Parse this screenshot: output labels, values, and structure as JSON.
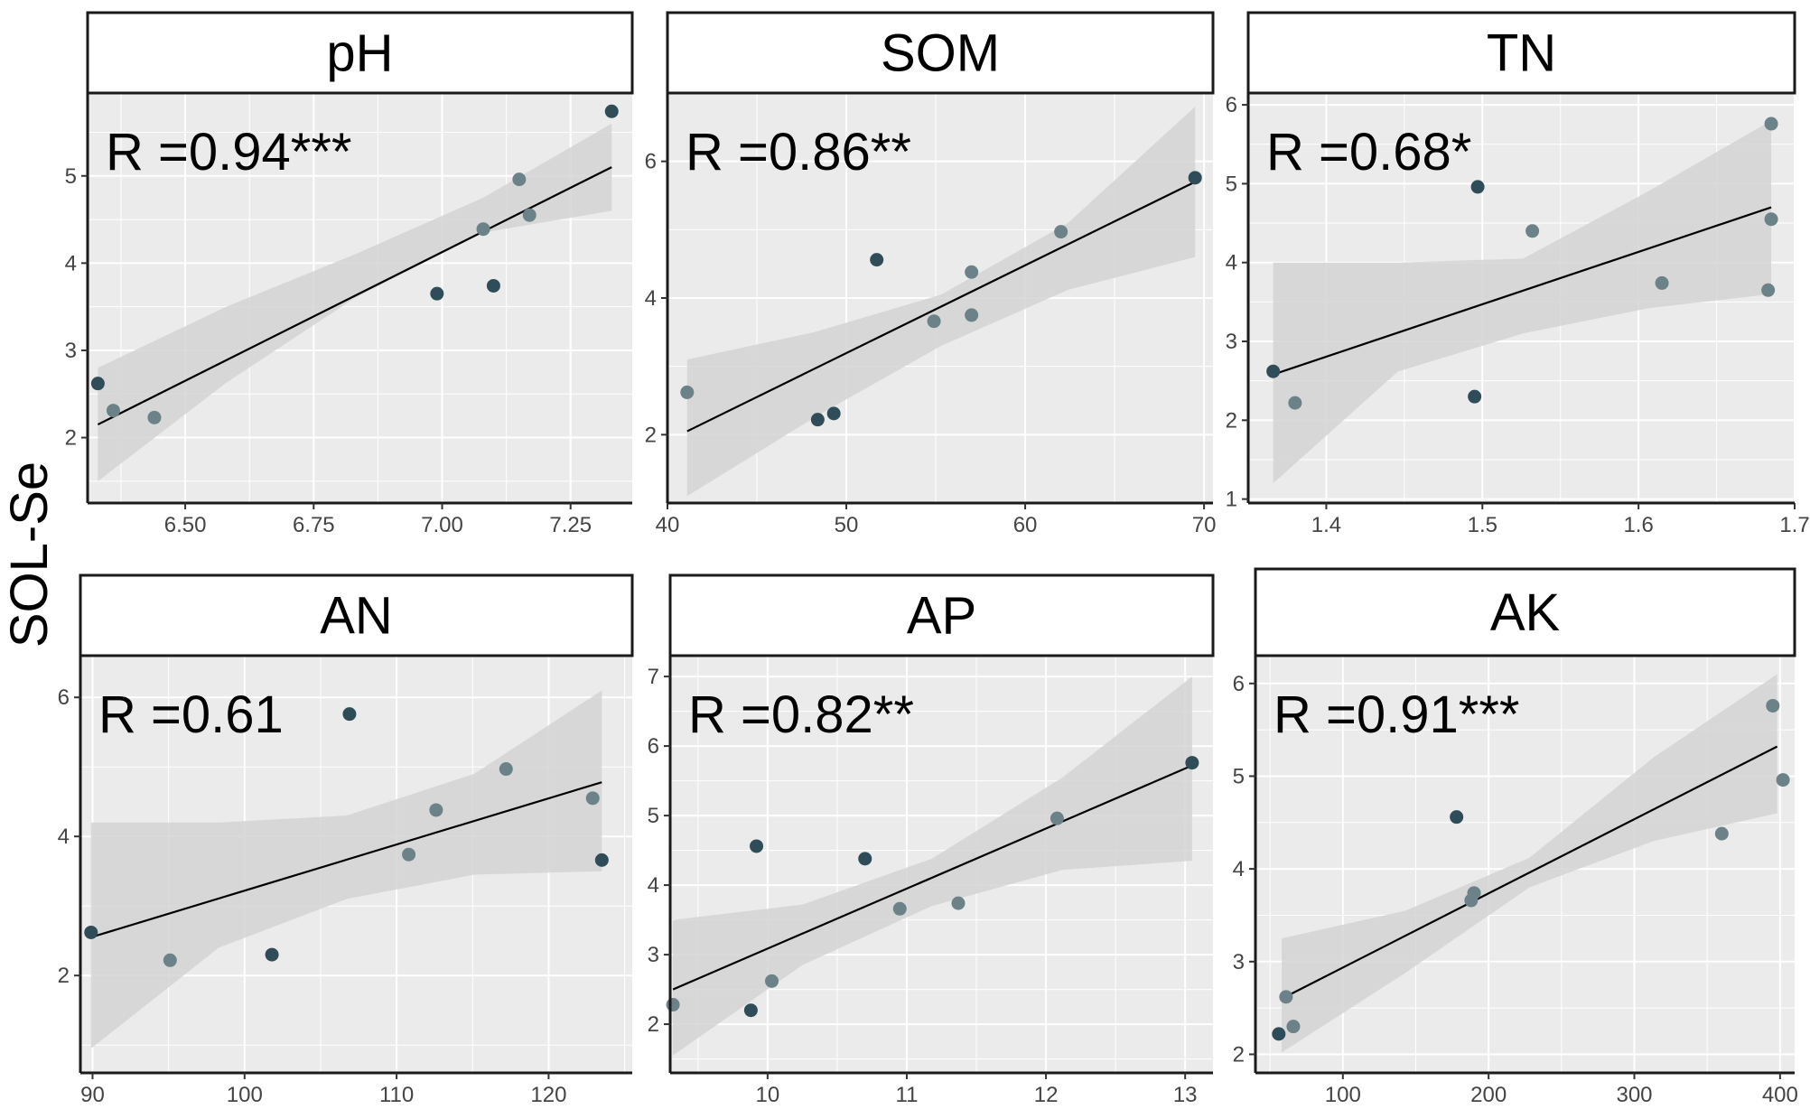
{
  "figure": {
    "y_axis_label": "SOL-Se",
    "colors": {
      "panel_bg": "#ebebeb",
      "grid": "#ffffff",
      "ribbon": "#d4d4d4",
      "line": "#000000",
      "point_dark": "#2f4d58",
      "point_light": "#6b8288",
      "strip_bg": "#ffffff",
      "border": "#1a1a1a"
    }
  },
  "chart_data": [
    {
      "type": "scatter",
      "title": "pH",
      "stat_label": "R  =0.94***",
      "xlabel": "",
      "ylabel": "SOL-Se",
      "xlim": [
        6.31,
        7.37
      ],
      "ylim": [
        1.25,
        5.95
      ],
      "xticks": [
        6.5,
        6.75,
        7.0,
        7.25
      ],
      "xtick_labels": [
        "6.50",
        "6.75",
        "7.00",
        "7.25"
      ],
      "yticks": [
        2,
        3,
        4,
        5
      ],
      "ytick_labels": [
        "2",
        "3",
        "4",
        "5"
      ],
      "points": [
        {
          "x": 6.33,
          "y": 2.62,
          "shade": "dark"
        },
        {
          "x": 6.36,
          "y": 2.31,
          "shade": "light"
        },
        {
          "x": 6.44,
          "y": 2.23,
          "shade": "light"
        },
        {
          "x": 6.99,
          "y": 3.65,
          "shade": "dark"
        },
        {
          "x": 7.08,
          "y": 4.39,
          "shade": "light"
        },
        {
          "x": 7.1,
          "y": 3.74,
          "shade": "dark"
        },
        {
          "x": 7.15,
          "y": 4.96,
          "shade": "light"
        },
        {
          "x": 7.17,
          "y": 4.55,
          "shade": "light"
        },
        {
          "x": 7.33,
          "y": 5.74,
          "shade": "dark"
        }
      ],
      "fit": {
        "x": [
          6.33,
          7.33
        ],
        "y": [
          2.15,
          5.1
        ]
      },
      "ci_band": {
        "x": [
          6.33,
          6.58,
          6.83,
          7.08,
          7.33
        ],
        "lower": [
          1.5,
          2.63,
          3.6,
          4.35,
          4.6
        ],
        "upper": [
          2.8,
          3.5,
          4.1,
          4.75,
          5.6
        ]
      }
    },
    {
      "type": "scatter",
      "title": "SOM",
      "stat_label": "R  =0.86**",
      "xlabel": "",
      "ylabel": "SOL-Se",
      "xlim": [
        40.0,
        70.5
      ],
      "ylim": [
        1.0,
        7.0
      ],
      "xticks": [
        40,
        50,
        60,
        70
      ],
      "xtick_labels": [
        "40",
        "50",
        "60",
        "70"
      ],
      "yticks": [
        2,
        4,
        6
      ],
      "ytick_labels": [
        "2",
        "4",
        "6"
      ],
      "points": [
        {
          "x": 41.1,
          "y": 2.62,
          "shade": "light"
        },
        {
          "x": 48.4,
          "y": 2.22,
          "shade": "dark"
        },
        {
          "x": 49.3,
          "y": 2.31,
          "shade": "dark"
        },
        {
          "x": 51.7,
          "y": 4.56,
          "shade": "dark"
        },
        {
          "x": 54.9,
          "y": 3.66,
          "shade": "light"
        },
        {
          "x": 57.0,
          "y": 4.38,
          "shade": "light"
        },
        {
          "x": 57.0,
          "y": 3.75,
          "shade": "light"
        },
        {
          "x": 62.0,
          "y": 4.97,
          "shade": "light"
        },
        {
          "x": 69.5,
          "y": 5.76,
          "shade": "dark"
        }
      ],
      "fit": {
        "x": [
          41.1,
          69.5
        ],
        "y": [
          2.05,
          5.7
        ]
      },
      "ci_band": {
        "x": [
          41.1,
          48.2,
          55.3,
          62.4,
          69.5
        ],
        "lower": [
          1.1,
          2.25,
          3.3,
          4.12,
          4.6
        ],
        "upper": [
          3.1,
          3.5,
          4.05,
          5.1,
          6.8
        ]
      }
    },
    {
      "type": "scatter",
      "title": "TN",
      "stat_label": "R  =0.68*",
      "xlabel": "",
      "ylabel": "SOL-Se",
      "xlim": [
        1.35,
        1.7
      ],
      "ylim": [
        0.95,
        6.15
      ],
      "xticks": [
        1.4,
        1.5,
        1.6,
        1.7
      ],
      "xtick_labels": [
        "1.4",
        "1.5",
        "1.6",
        "1.7"
      ],
      "yticks": [
        1,
        2,
        3,
        4,
        5,
        6
      ],
      "ytick_labels": [
        "1",
        "2",
        "3",
        "4",
        "5",
        "6"
      ],
      "points": [
        {
          "x": 1.366,
          "y": 2.62,
          "shade": "dark"
        },
        {
          "x": 1.38,
          "y": 2.22,
          "shade": "light"
        },
        {
          "x": 1.495,
          "y": 2.3,
          "shade": "dark"
        },
        {
          "x": 1.497,
          "y": 4.96,
          "shade": "dark"
        },
        {
          "x": 1.532,
          "y": 4.4,
          "shade": "light"
        },
        {
          "x": 1.615,
          "y": 3.74,
          "shade": "light"
        },
        {
          "x": 1.683,
          "y": 3.65,
          "shade": "light"
        },
        {
          "x": 1.685,
          "y": 5.76,
          "shade": "light"
        },
        {
          "x": 1.685,
          "y": 4.55,
          "shade": "light"
        }
      ],
      "fit": {
        "x": [
          1.366,
          1.685
        ],
        "y": [
          2.58,
          4.7
        ]
      },
      "ci_band": {
        "x": [
          1.366,
          1.446,
          1.526,
          1.606,
          1.685
        ],
        "lower": [
          1.2,
          2.62,
          3.1,
          3.42,
          3.6
        ],
        "upper": [
          4.0,
          4.0,
          4.05,
          4.9,
          5.8
        ]
      }
    },
    {
      "type": "scatter",
      "title": "AN",
      "stat_label": "R  =0.61",
      "xlabel": "",
      "ylabel": "SOL-Se",
      "xlim": [
        89.2,
        125.5
      ],
      "ylim": [
        0.6,
        6.6
      ],
      "xticks": [
        90,
        100,
        110,
        120
      ],
      "xtick_labels": [
        "90",
        "100",
        "110",
        "120"
      ],
      "yticks": [
        2,
        4,
        6
      ],
      "ytick_labels": [
        "2",
        "4",
        "6"
      ],
      "points": [
        {
          "x": 89.9,
          "y": 2.62,
          "shade": "dark"
        },
        {
          "x": 95.1,
          "y": 2.22,
          "shade": "light"
        },
        {
          "x": 101.8,
          "y": 2.3,
          "shade": "dark"
        },
        {
          "x": 106.9,
          "y": 5.76,
          "shade": "dark"
        },
        {
          "x": 110.8,
          "y": 3.74,
          "shade": "light"
        },
        {
          "x": 112.6,
          "y": 4.38,
          "shade": "light"
        },
        {
          "x": 117.2,
          "y": 4.97,
          "shade": "light"
        },
        {
          "x": 122.9,
          "y": 4.55,
          "shade": "light"
        },
        {
          "x": 123.5,
          "y": 3.66,
          "shade": "dark"
        }
      ],
      "fit": {
        "x": [
          89.9,
          123.5
        ],
        "y": [
          2.55,
          4.78
        ]
      },
      "ci_band": {
        "x": [
          89.9,
          98.3,
          106.7,
          115.1,
          123.5
        ],
        "lower": [
          0.95,
          2.4,
          3.1,
          3.45,
          3.5
        ],
        "upper": [
          4.2,
          4.2,
          4.3,
          4.9,
          6.1
        ]
      }
    },
    {
      "type": "scatter",
      "title": "AP",
      "stat_label": "R  =0.82**",
      "xlabel": "",
      "ylabel": "SOL-Se",
      "xlim": [
        9.3,
        13.2
      ],
      "ylim": [
        1.3,
        7.3
      ],
      "xticks": [
        10,
        11,
        12,
        13
      ],
      "xtick_labels": [
        "10",
        "11",
        "12",
        "13"
      ],
      "yticks": [
        2,
        3,
        4,
        5,
        6,
        7
      ],
      "ytick_labels": [
        "2",
        "3",
        "4",
        "5",
        "6",
        "7"
      ],
      "points": [
        {
          "x": 9.32,
          "y": 2.28,
          "shade": "light"
        },
        {
          "x": 9.88,
          "y": 2.2,
          "shade": "dark"
        },
        {
          "x": 9.92,
          "y": 4.56,
          "shade": "dark"
        },
        {
          "x": 10.03,
          "y": 2.62,
          "shade": "light"
        },
        {
          "x": 10.7,
          "y": 4.38,
          "shade": "dark"
        },
        {
          "x": 10.95,
          "y": 3.66,
          "shade": "light"
        },
        {
          "x": 11.37,
          "y": 3.74,
          "shade": "light"
        },
        {
          "x": 12.08,
          "y": 4.96,
          "shade": "light"
        },
        {
          "x": 13.05,
          "y": 5.76,
          "shade": "dark"
        }
      ],
      "fit": {
        "x": [
          9.32,
          13.05
        ],
        "y": [
          2.5,
          5.72
        ]
      },
      "ci_band": {
        "x": [
          9.32,
          10.25,
          11.18,
          12.12,
          13.05
        ],
        "lower": [
          1.55,
          2.85,
          3.7,
          4.22,
          4.35
        ],
        "upper": [
          3.5,
          3.72,
          4.38,
          5.55,
          7.0
        ]
      }
    },
    {
      "type": "scatter",
      "title": "AK",
      "stat_label": "R  =0.91***",
      "xlabel": "",
      "ylabel": "SOL-Se",
      "xlim": [
        40,
        410
      ],
      "ylim": [
        1.8,
        6.3
      ],
      "xticks": [
        100,
        200,
        300,
        400
      ],
      "xtick_labels": [
        "100",
        "200",
        "300",
        "400"
      ],
      "yticks": [
        2,
        3,
        4,
        5,
        6
      ],
      "ytick_labels": [
        "2",
        "3",
        "4",
        "5",
        "6"
      ],
      "points": [
        {
          "x": 56,
          "y": 2.22,
          "shade": "dark"
        },
        {
          "x": 61,
          "y": 2.62,
          "shade": "light"
        },
        {
          "x": 66,
          "y": 2.3,
          "shade": "light"
        },
        {
          "x": 178,
          "y": 4.56,
          "shade": "dark"
        },
        {
          "x": 188,
          "y": 3.66,
          "shade": "light"
        },
        {
          "x": 190,
          "y": 3.74,
          "shade": "light"
        },
        {
          "x": 360,
          "y": 4.38,
          "shade": "light"
        },
        {
          "x": 395,
          "y": 5.76,
          "shade": "light"
        },
        {
          "x": 402,
          "y": 4.96,
          "shade": "light"
        }
      ],
      "fit": {
        "x": [
          58,
          398
        ],
        "y": [
          2.6,
          5.32
        ]
      },
      "ci_band": {
        "x": [
          58,
          143,
          228,
          313,
          398
        ],
        "lower": [
          2.02,
          2.88,
          3.8,
          4.3,
          4.6
        ],
        "upper": [
          3.25,
          3.55,
          4.12,
          5.2,
          6.1
        ]
      }
    }
  ]
}
